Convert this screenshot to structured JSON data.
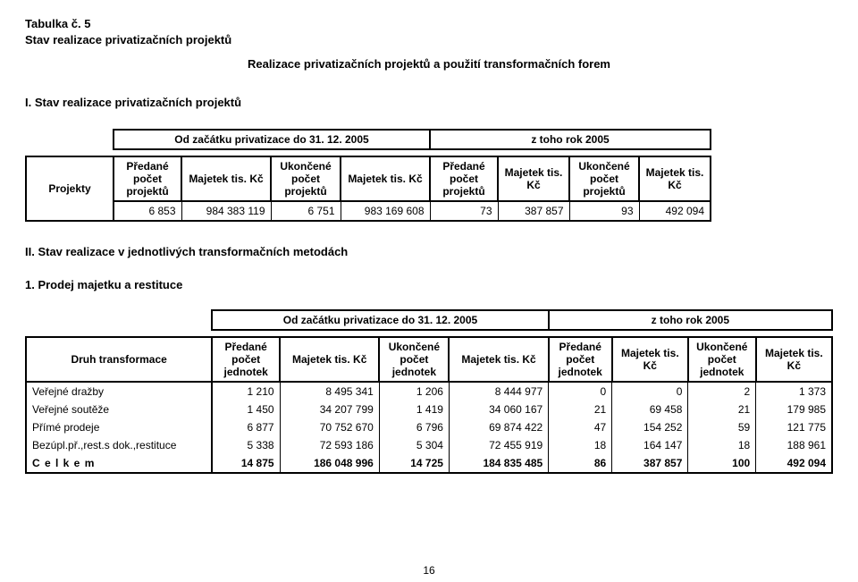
{
  "header": {
    "table_no": "Tabulka č. 5",
    "title": "Stav realizace privatizačních projektů",
    "subtitle": "Realizace privatizačních projektů a použití transformačních forem"
  },
  "section1": {
    "heading": "I. Stav realizace privatizačních projektů",
    "row_header": "Projekty",
    "period_a": "Od začátku privatizace do 31. 12. 2005",
    "period_b": "z toho rok 2005",
    "cols": {
      "predane": "Předané počet projektů",
      "majetek": "Majetek tis. Kč",
      "ukoncene": "Ukončené počet projektů"
    },
    "row": [
      "6 853",
      "984 383 119",
      "6 751",
      "983 169 608",
      "73",
      "387 857",
      "93",
      "492 094"
    ]
  },
  "section2": {
    "heading": "II. Stav realizace v jednotlivých transformačních metodách",
    "subheading": "1. Prodej majetku a restituce",
    "row_header": "Druh transformace",
    "period_a": "Od začátku privatizace do 31. 12. 2005",
    "period_b": "z toho rok 2005",
    "cols": {
      "predane": "Předané počet jednotek",
      "majetek": "Majetek tis. Kč",
      "ukoncene": "Ukončené počet jednotek"
    },
    "rows": [
      {
        "label": "Veřejné dražby",
        "v": [
          "1 210",
          "8 495 341",
          "1 206",
          "8 444 977",
          "0",
          "0",
          "2",
          "1 373"
        ]
      },
      {
        "label": "Veřejné soutěže",
        "v": [
          "1 450",
          "34 207 799",
          "1 419",
          "34 060 167",
          "21",
          "69 458",
          "21",
          "179 985"
        ]
      },
      {
        "label": "Přímé prodeje",
        "v": [
          "6 877",
          "70 752 670",
          "6 796",
          "69 874 422",
          "47",
          "154 252",
          "59",
          "121 775"
        ]
      },
      {
        "label": "Bezúpl.př.,rest.s dok.,restituce",
        "v": [
          "5 338",
          "72 593 186",
          "5 304",
          "72 455 919",
          "18",
          "164 147",
          "18",
          "188 961"
        ]
      },
      {
        "label": "C e l k e m",
        "v": [
          "14 875",
          "186 048 996",
          "14 725",
          "184 835 485",
          "86",
          "387 857",
          "100",
          "492 094"
        ]
      }
    ]
  },
  "page_number": "16",
  "style": {
    "colwidths_t1": {
      "label": 90,
      "num_narrow": 72,
      "num_wide": 100
    },
    "colwidths_t2": {
      "label": 170,
      "num_narrow": 64,
      "num_wide": 96,
      "num_b_narrow": 58,
      "num_b_wide": 72
    }
  }
}
